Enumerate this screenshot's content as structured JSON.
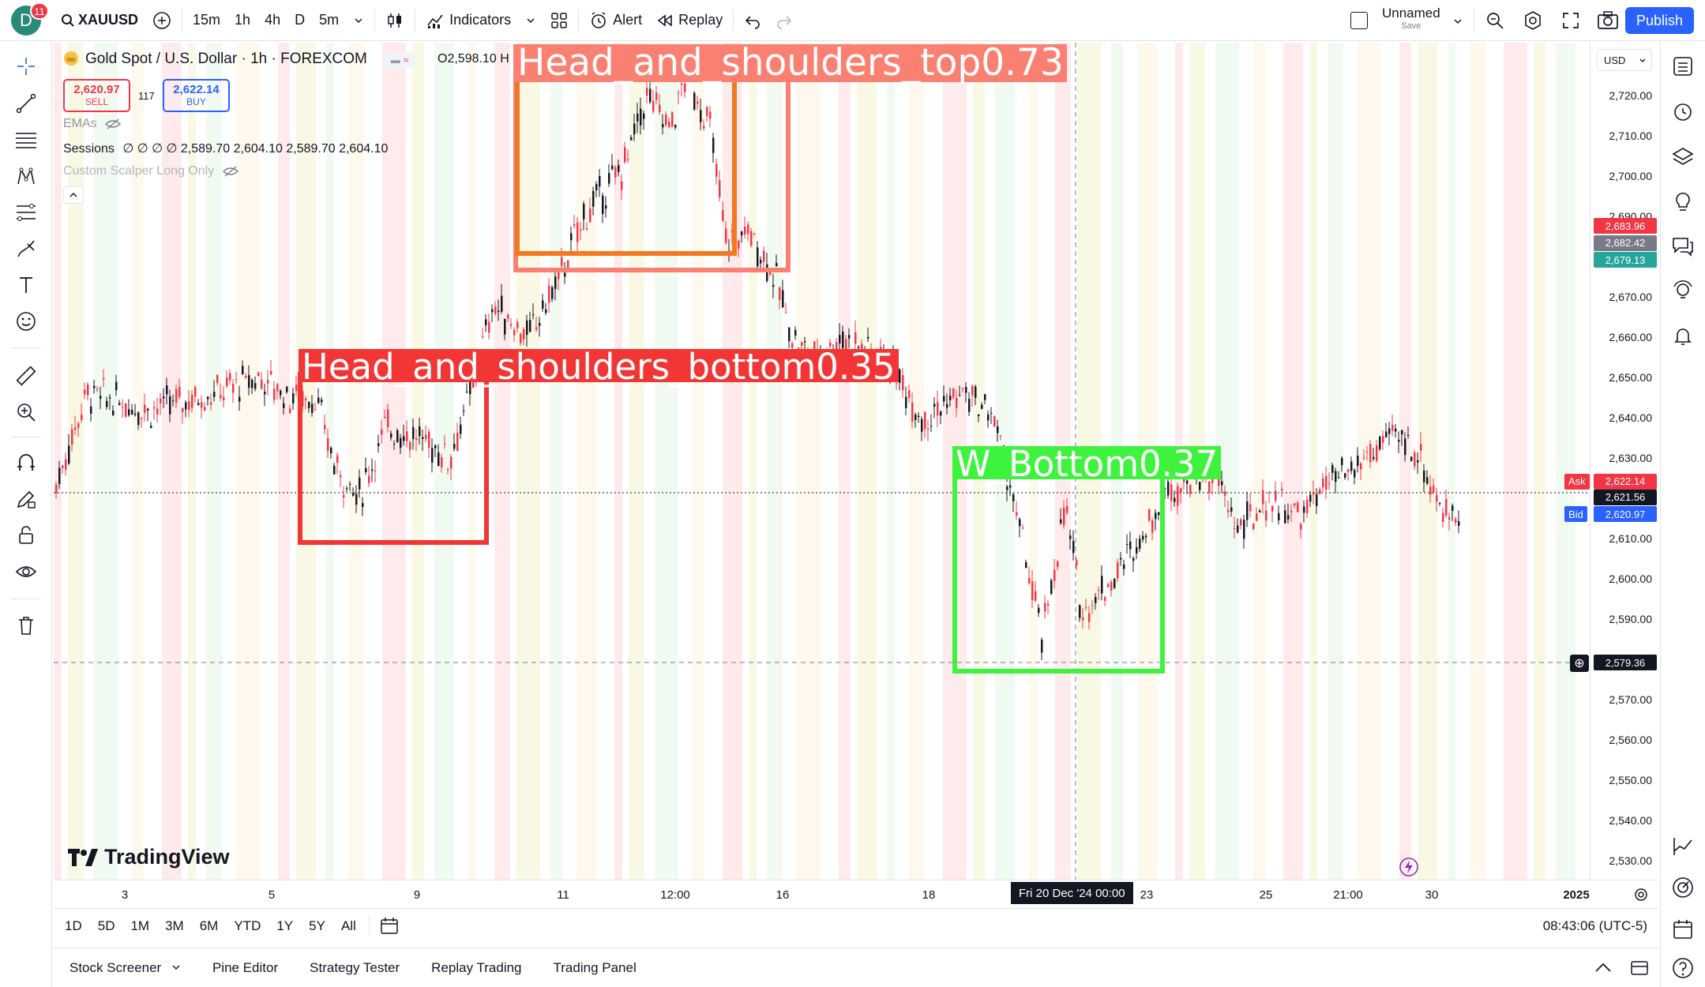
{
  "topbar": {
    "avatar_letter": "D",
    "notification_count": "11",
    "symbol": "XAUUSD",
    "timeframes": [
      "15m",
      "1h",
      "4h",
      "D",
      "5m"
    ],
    "active_timeframe": "1h",
    "indicators_label": "Indicators",
    "alert_label": "Alert",
    "replay_label": "Replay",
    "layout_name": "Unnamed",
    "layout_save": "Save",
    "publish_label": "Publish"
  },
  "legend": {
    "title": "Gold Spot / U.S. Dollar · 1h · FOREXCOM",
    "ohlc_open": "O2,598.10",
    "ohlc_h": "H",
    "sell_price": "2,620.97",
    "sell_label": "SELL",
    "buy_price": "2,622.14",
    "buy_label": "BUY",
    "spread": "117",
    "indicators": [
      {
        "name": "EMAs",
        "values": ""
      },
      {
        "name": "Sessions",
        "values": "∅ ∅ ∅ ∅ 2,589.70 2,604.10 2,589.70 2,604.10"
      },
      {
        "name": "Custom Scalper Long Only",
        "values": ""
      }
    ]
  },
  "currency": "USD",
  "price_axis": {
    "ticks": [
      "2,720.00",
      "2,710.00",
      "2,700.00",
      "2,690.00",
      "2,670.00",
      "2,660.00",
      "2,650.00",
      "2,640.00",
      "2,630.00",
      "2,610.00",
      "2,600.00",
      "2,590.00",
      "2,570.00",
      "2,560.00",
      "2,550.00",
      "2,540.00",
      "2,530.00"
    ],
    "tag_high": "2,683.96",
    "tag_mid": "2,682.42",
    "tag_low": "2,679.13",
    "ask_label": "Ask",
    "ask_price": "2,622.14",
    "last_price": "2,621.56",
    "bid_label": "Bid",
    "bid_price": "2,620.97",
    "cross_price": "2,579.36"
  },
  "time_axis": {
    "ticks": [
      "3",
      "5",
      "9",
      "11",
      "12:00",
      "16",
      "18",
      "23",
      "25",
      "21:00",
      "30",
      "2025"
    ],
    "cross_time": "Fri 20 Dec '24   00:00"
  },
  "detections": [
    {
      "label": "Head_and_shoulders_top0.73",
      "color": "#fa8072"
    },
    {
      "label": "Head_and_shoulders_bottom0.35",
      "color": "#f23636"
    },
    {
      "label": "W_Bottom0.37",
      "color": "#3ef33e"
    }
  ],
  "ranges": [
    "1D",
    "5D",
    "1M",
    "3M",
    "6M",
    "YTD",
    "1Y",
    "5Y",
    "All"
  ],
  "clock": "08:43:06 (UTC-5)",
  "bottom_tabs": [
    "Stock Screener",
    "Pine Editor",
    "Strategy Tester",
    "Replay Trading",
    "Trading Panel"
  ],
  "watermark": "TradingView",
  "colors": {
    "accent": "#2962ff",
    "up": "#131722",
    "sell": "#f23645",
    "buy": "#2962ff",
    "ask_tag": "#f23645",
    "bid_tag": "#2962ff",
    "tag_high": "#f23645",
    "tag_mid": "#787b86",
    "tag_low": "#26a69a"
  }
}
